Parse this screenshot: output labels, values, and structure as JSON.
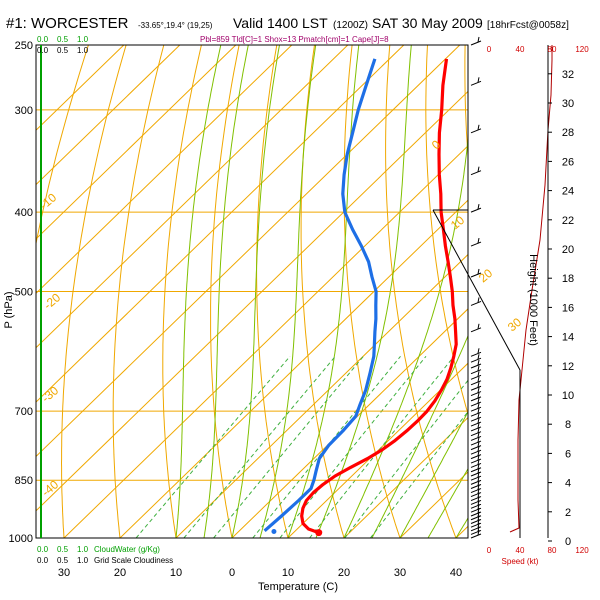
{
  "header": {
    "title": "#1: WORCESTER",
    "coords": "-33.65°,19.4° (19,25)",
    "valid": "Valid 1400 LST",
    "utc": "(1200Z)",
    "date": "SAT 30 May 2009",
    "forecast": "[18hrFcst@0058z]",
    "subtitle": "Pbl=859 Tld[C]=1 Shox=13 Pmatch[cm]=1 Cape[J]=8"
  },
  "left_top_scale": {
    "ticks": [
      "0.0",
      "0.5",
      "1.0"
    ],
    "labels": [
      "0.0",
      "0.5",
      "1.0"
    ]
  },
  "bottom_scale": {
    "ticks": [
      "0.0",
      "0.5",
      "1.0"
    ],
    "labels": [
      "0.0",
      "0.5",
      "1.0"
    ],
    "cloudwater_label": "CloudWater (g/Kg)",
    "cloudiness_label": "Grid Scale Cloudiness"
  },
  "speed_axis": {
    "ticks": [
      "0",
      "40",
      "80",
      "120"
    ],
    "label": "Speed (kt)"
  },
  "height_axis": {
    "ticks": [
      "0",
      "2",
      "4",
      "6",
      "8",
      "10",
      "12",
      "14",
      "16",
      "18",
      "20",
      "22",
      "24",
      "26",
      "28",
      "30",
      "32"
    ],
    "label": "Height (1000 Feet)"
  },
  "axis_labels": {
    "x": "Temperature (C)",
    "y": "P (hPa)"
  },
  "colors": {
    "temperature": "#ff0000",
    "dewpoint": "#1e6fe6",
    "isotherm": "#f0a800",
    "dry_adiabat": "#d4b000",
    "moist_adiabat": "#80c000",
    "mixing_ratio": "#40b040",
    "wind_speed": "#b00000",
    "grid_left": "#00a000"
  },
  "chart_data": {
    "type": "line",
    "title": "#1: WORCESTER",
    "xlabel": "Temperature (C)",
    "ylabel": "P (hPa)",
    "xlim": [
      -35,
      45
    ],
    "ylim": [
      1000,
      250
    ],
    "y_scale": "log",
    "grid": true,
    "pressure_ticks": [
      250,
      300,
      400,
      500,
      700,
      850,
      1000
    ],
    "temperature_ticks": [
      30,
      20,
      10,
      0,
      10,
      20,
      30,
      40
    ],
    "isotherm_labels": [
      "0",
      "10",
      "20",
      "30",
      "-10",
      "-20",
      "-30",
      "-40"
    ],
    "mixing_ratio_labels": [
      "1",
      "2",
      "3",
      "5",
      "7",
      "10",
      "15",
      "20"
    ],
    "series": [
      {
        "name": "Temperature",
        "pressure": [
          985,
          975,
          960,
          940,
          920,
          900,
          880,
          860,
          840,
          820,
          800,
          780,
          760,
          740,
          720,
          700,
          680,
          660,
          640,
          620,
          600,
          580,
          560,
          540,
          520,
          500,
          480,
          460,
          440,
          420,
          400,
          380,
          360,
          340,
          320,
          300,
          280,
          260
        ],
        "temperature": [
          14.5,
          12.0,
          10.0,
          8.4,
          7.2,
          6.4,
          6.2,
          6.4,
          7.0,
          8.2,
          9.6,
          10.6,
          11.2,
          11.5,
          11.6,
          11.5,
          11.0,
          10.2,
          9.2,
          7.8,
          6.2,
          4.4,
          2.0,
          -0.5,
          -3.3,
          -6.0,
          -9.0,
          -12.2,
          -15.6,
          -19.0,
          -22.6,
          -26.0,
          -29.8,
          -33.6,
          -37.5,
          -41.3,
          -45.6,
          -49.8
        ]
      },
      {
        "name": "Dewpoint",
        "pressure": [
          980,
          940,
          900,
          870,
          850,
          830,
          800,
          770,
          740,
          710,
          690,
          660,
          630,
          600,
          580,
          560,
          540,
          520,
          500,
          480,
          460,
          440,
          420,
          400,
          380,
          360,
          340,
          320,
          300,
          280,
          260
        ],
        "temperature": [
          4.5,
          4.8,
          5.0,
          5.0,
          4.0,
          2.8,
          1.0,
          0.2,
          0.1,
          -0.3,
          -1.5,
          -3.3,
          -5.6,
          -8.1,
          -10.2,
          -12.4,
          -14.6,
          -17.1,
          -19.6,
          -23.0,
          -26.4,
          -30.6,
          -35.2,
          -39.8,
          -43.5,
          -46.8,
          -50.0,
          -53.0,
          -56.2,
          -59.3,
          -62.6
        ]
      }
    ],
    "surface_point": {
      "pressure": 985,
      "temperature": 14.5
    },
    "surface_dewpoint": {
      "pressure": 982,
      "temperature": 6.3
    },
    "wind_barbs_pressure": [
      1000,
      990,
      980,
      970,
      960,
      950,
      940,
      930,
      920,
      910,
      900,
      890,
      880,
      870,
      860,
      850,
      840,
      830,
      820,
      810,
      800,
      790,
      780,
      770,
      760,
      750,
      740,
      730,
      720,
      710,
      700,
      690,
      680,
      670,
      660,
      650,
      640,
      630,
      620,
      610,
      600,
      560,
      520,
      480,
      440,
      400,
      360,
      320,
      280,
      250
    ]
  }
}
